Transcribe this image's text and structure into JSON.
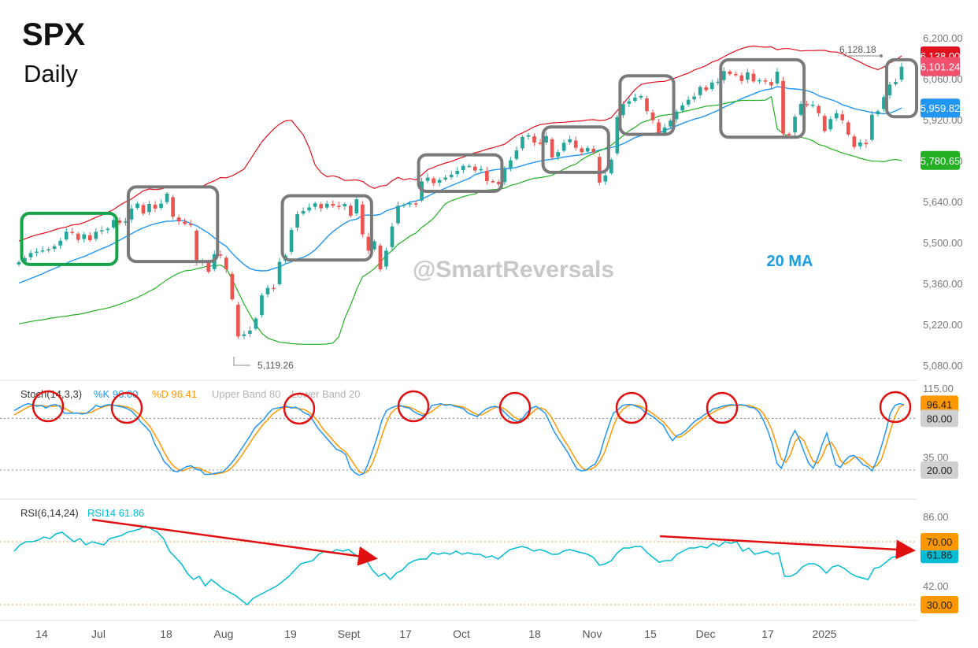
{
  "title": "SPX",
  "subtitle": "Daily",
  "watermark": "@SmartReversals",
  "ma_label": "20 MA",
  "colors": {
    "up": "#26a69a",
    "down": "#ef5350",
    "upper_band": "#e0101e",
    "middle_band": "#2196f3",
    "lower_band": "#23b023",
    "stoch_k": "#2196f3",
    "stoch_d": "#ff9800",
    "rsi": "#00bcd4",
    "highlight_green": "#17a34a",
    "highlight_gray": "#7a7a7a",
    "circle_red": "#e01010",
    "arrow_red": "#e01010"
  },
  "chart_data": [
    {
      "type": "candlestick",
      "panel": "price",
      "y_ticks": [
        "6,200.00",
        "6,060.00",
        "5,920.00",
        "5,780.00",
        "5,640.00",
        "5,500.00",
        "5,360.00",
        "5,220.00",
        "5,080.00"
      ],
      "ylim": [
        5080,
        6200
      ],
      "x_ticks": [
        "14",
        "Jul",
        "18",
        "Aug",
        "19",
        "Sept",
        "17",
        "Oct",
        "18",
        "Nov",
        "15",
        "Dec",
        "17",
        "2025"
      ],
      "annotations": {
        "high_marker": "6,128.18",
        "low_marker": "5,119.26"
      },
      "price_labels": {
        "upper_band": "6,138.00",
        "last": "6,101.24",
        "middle_band": "5,959.82",
        "lower_band": "5,780.65"
      },
      "close": [
        5433,
        5447,
        5464,
        5469,
        5473,
        5477,
        5487,
        5506,
        5537,
        5534,
        5509,
        5528,
        5508,
        5537,
        5542,
        5547,
        5577,
        5567,
        5572,
        5616,
        5633,
        5599,
        5632,
        5616,
        5633,
        5667,
        5588,
        5572,
        5564,
        5560,
        5431,
        5437,
        5400,
        5460,
        5455,
        5408,
        5306,
        5179,
        5186,
        5199,
        5240,
        5319,
        5345,
        5344,
        5434,
        5455,
        5543,
        5597,
        5608,
        5620,
        5634,
        5617,
        5633,
        5626,
        5622,
        5632,
        5591,
        5648,
        5528,
        5472,
        5504,
        5408,
        5472,
        5555,
        5626,
        5630,
        5634,
        5632,
        5709,
        5722,
        5703,
        5714,
        5722,
        5732,
        5745,
        5762,
        5762,
        5746,
        5751,
        5710,
        5709,
        5699,
        5751,
        5781,
        5815,
        5861,
        5867,
        5842,
        5838,
        5864,
        5791,
        5809,
        5841,
        5853,
        5824,
        5809,
        5823,
        5808,
        5705,
        5729,
        5783,
        5929,
        5973,
        5983,
        5995,
        6001,
        5949,
        5918,
        5870,
        5893,
        5917,
        5948,
        5969,
        5988,
        5999,
        6032,
        6021,
        6047,
        6050,
        6086,
        6076,
        6075,
        6052,
        6082,
        6051,
        6055,
        6051,
        6037,
        6084,
        5873,
        5867,
        5930,
        5974,
        5970,
        5971,
        5942,
        5881,
        5922,
        5942,
        5918,
        5869,
        5827,
        5842,
        5836,
        5937,
        5949,
        5997,
        6040,
        6049,
        6101
      ],
      "upper_band": [
        5505,
        5512,
        5520,
        5526,
        5531,
        5536,
        5543,
        5549,
        5553,
        5560,
        5562,
        5568,
        5577,
        5586,
        5594,
        5603,
        5613,
        5627,
        5639,
        5649,
        5663,
        5677,
        5683,
        5681,
        5683,
        5689,
        5690,
        5691,
        5689,
        5694,
        5693,
        5692,
        5703,
        5711,
        5722,
        5721,
        5728,
        5739,
        5751,
        5782,
        5813,
        5844,
        5867,
        5888,
        5905,
        5916,
        5918,
        5893,
        5868,
        5824,
        5765,
        5739,
        5725,
        5728,
        5723,
        5712,
        5713,
        5714,
        5709,
        5694,
        5685,
        5693,
        5695,
        5711,
        5723,
        5714,
        5719,
        5714,
        5731,
        5749,
        5757,
        5765,
        5772,
        5777,
        5785,
        5792,
        5800,
        5807,
        5812,
        5819,
        5824,
        5830,
        5836,
        5851,
        5866,
        5875,
        5885,
        5896,
        5903,
        5906,
        5909,
        5910,
        5911,
        5913,
        5915,
        5916,
        5919,
        5920,
        5917,
        5919,
        5927,
        5951,
        5975,
        5999,
        6023,
        6040,
        6045,
        6048,
        6050,
        6051,
        6057,
        6064,
        6072,
        6079,
        6090,
        6097,
        6105,
        6117,
        6124,
        6135,
        6146,
        6155,
        6163,
        6169,
        6172,
        6169,
        6168,
        6169,
        6159,
        6163,
        6163,
        6159,
        6155,
        6156,
        6156,
        6157,
        6157,
        6152,
        6151,
        6146,
        6136,
        6126,
        6117,
        6106,
        6098,
        6091,
        6100,
        6114,
        6124,
        6138
      ],
      "middle_band": [
        5361,
        5369,
        5377,
        5385,
        5393,
        5403,
        5411,
        5420,
        5429,
        5438,
        5445,
        5452,
        5461,
        5470,
        5479,
        5487,
        5497,
        5508,
        5519,
        5530,
        5541,
        5550,
        5558,
        5564,
        5569,
        5573,
        5573,
        5576,
        5574,
        5565,
        5557,
        5545,
        5532,
        5516,
        5500,
        5487,
        5463,
        5443,
        5425,
        5411,
        5405,
        5403,
        5404,
        5411,
        5417,
        5427,
        5434,
        5444,
        5449,
        5460,
        5475,
        5496,
        5518,
        5537,
        5552,
        5566,
        5576,
        5580,
        5593,
        5594,
        5593,
        5596,
        5608,
        5615,
        5622,
        5627,
        5638,
        5642,
        5648,
        5658,
        5668,
        5677,
        5686,
        5694,
        5703,
        5711,
        5719,
        5732,
        5738,
        5743,
        5748,
        5750,
        5753,
        5753,
        5757,
        5763,
        5769,
        5774,
        5779,
        5782,
        5785,
        5788,
        5792,
        5795,
        5798,
        5800,
        5805,
        5810,
        5816,
        5820,
        5825,
        5830,
        5838,
        5848,
        5859,
        5865,
        5869,
        5873,
        5875,
        5883,
        5891,
        5899,
        5907,
        5915,
        5922,
        5927,
        5934,
        5943,
        5952,
        5962,
        5972,
        5982,
        5992,
        6000,
        6008,
        6016,
        6022,
        6025,
        6033,
        6030,
        6026,
        6025,
        6023,
        6019,
        6013,
        6002,
        5995,
        5989,
        5982,
        5971,
        5965,
        5958,
        5953,
        5949,
        5944,
        5943,
        5940,
        5943,
        5950,
        5960
      ],
      "lower_band": [
        5222,
        5226,
        5230,
        5233,
        5236,
        5240,
        5243,
        5246,
        5248,
        5252,
        5254,
        5258,
        5263,
        5268,
        5272,
        5276,
        5282,
        5289,
        5296,
        5304,
        5312,
        5322,
        5333,
        5343,
        5358,
        5373,
        5385,
        5395,
        5403,
        5405,
        5410,
        5415,
        5420,
        5420,
        5423,
        5412,
        5374,
        5332,
        5290,
        5254,
        5218,
        5190,
        5173,
        5166,
        5159,
        5157,
        5154,
        5153,
        5152,
        5152,
        5152,
        5152,
        5153,
        5156,
        5178,
        5240,
        5286,
        5339,
        5383,
        5395,
        5411,
        5432,
        5456,
        5472,
        5494,
        5507,
        5522,
        5532,
        5552,
        5566,
        5583,
        5608,
        5633,
        5643,
        5650,
        5657,
        5662,
        5666,
        5676,
        5679,
        5681,
        5682,
        5686,
        5695,
        5700,
        5707,
        5714,
        5720,
        5722,
        5725,
        5730,
        5740,
        5751,
        5761,
        5768,
        5783,
        5795,
        5804,
        5813,
        5822,
        5833,
        5849,
        5865,
        5882,
        5894,
        5909,
        5916,
        5923,
        5932,
        5936,
        5938,
        5941,
        5947,
        5951,
        5956,
        5961,
        5966,
        5968,
        5970,
        5975,
        5979,
        5983,
        5986,
        5986,
        5986,
        5986,
        5987,
        5999,
        5889,
        5872,
        5862,
        5860,
        5860,
        5855,
        5848,
        5835,
        5830,
        5821,
        5814,
        5806,
        5800,
        5795,
        5788,
        5783,
        5778,
        5778,
        5776,
        5782,
        5784,
        5780
      ]
    },
    {
      "type": "line",
      "panel": "stochastic",
      "title": "Stoch(14,3,3)",
      "legend": [
        "%K 96.00",
        "%D 96.41",
        "Upper Band 80",
        "Lower Band 20"
      ],
      "y_ticks": [
        "115.00",
        "80.00",
        "35.00",
        "20.00"
      ],
      "ylim": [
        0,
        115
      ],
      "reference_lines": [
        80,
        20
      ],
      "price_labels": {
        "d": "96.41",
        "upper": "80.00",
        "lower": "20.00"
      },
      "series": [
        {
          "name": "%K",
          "values": [
            89,
            92,
            95,
            97,
            96,
            94,
            95,
            92,
            95,
            96,
            94,
            86,
            86,
            86,
            86,
            85,
            86,
            90,
            95,
            93,
            95,
            96,
            95,
            94,
            93,
            91,
            88,
            82,
            75,
            70,
            64,
            50,
            41,
            30,
            25,
            19,
            18,
            21,
            24,
            25,
            21,
            20,
            15,
            15,
            16,
            17,
            18,
            23,
            29,
            36,
            44,
            52,
            60,
            69,
            74,
            79,
            86,
            91,
            92,
            93,
            94,
            92,
            93,
            90,
            86,
            84,
            76,
            68,
            62,
            56,
            50,
            44,
            42,
            38,
            23,
            17,
            14,
            16,
            28,
            43,
            59,
            78,
            89,
            92,
            94,
            95,
            93,
            92,
            88,
            85,
            83,
            86,
            95,
            96,
            97,
            95,
            96,
            94,
            93,
            91,
            86,
            84,
            82,
            87,
            91,
            93,
            94,
            92,
            87,
            82,
            78,
            76,
            80,
            87,
            92,
            94,
            90,
            86,
            75,
            64,
            56,
            48,
            40,
            30,
            21,
            19,
            20,
            24,
            27,
            38,
            56,
            72,
            86,
            90,
            95,
            96,
            96,
            94,
            92,
            87,
            84,
            81,
            76,
            72,
            62,
            54,
            60,
            62,
            66,
            72,
            77,
            80,
            84,
            87,
            91,
            92,
            94,
            95,
            96,
            95,
            96,
            95,
            93,
            92,
            88,
            78,
            66,
            50,
            28,
            22,
            36,
            56,
            66,
            55,
            41,
            28,
            22,
            34,
            50,
            63,
            44,
            26,
            23,
            31,
            36,
            37,
            32,
            26,
            24,
            19,
            31,
            47,
            65,
            86,
            95,
            97,
            96
          ]
        },
        {
          "name": "%D",
          "values": [
            84,
            87,
            90,
            93,
            95,
            95,
            95,
            94,
            94,
            94,
            95,
            92,
            89,
            86,
            86,
            86,
            86,
            87,
            90,
            92,
            94,
            95,
            95,
            95,
            94,
            93,
            91,
            87,
            82,
            76,
            70,
            61,
            52,
            41,
            32,
            25,
            21,
            19,
            21,
            23,
            23,
            22,
            19,
            17,
            15,
            16,
            17,
            19,
            23,
            29,
            36,
            44,
            52,
            60,
            67,
            74,
            79,
            85,
            89,
            92,
            93,
            93,
            92,
            91,
            90,
            87,
            82,
            76,
            68,
            62,
            56,
            50,
            45,
            41,
            34,
            26,
            18,
            16,
            19,
            29,
            43,
            60,
            75,
            86,
            91,
            94,
            94,
            93,
            91,
            88,
            85,
            85,
            88,
            92,
            96,
            96,
            96,
            95,
            94,
            93,
            90,
            87,
            84,
            84,
            87,
            90,
            93,
            93,
            91,
            87,
            82,
            79,
            78,
            81,
            86,
            91,
            92,
            90,
            84,
            75,
            65,
            56,
            48,
            39,
            30,
            23,
            20,
            21,
            24,
            30,
            40,
            55,
            71,
            83,
            90,
            94,
            96,
            95,
            94,
            91,
            88,
            84,
            80,
            76,
            70,
            63,
            58,
            59,
            63,
            67,
            72,
            76,
            80,
            84,
            87,
            90,
            92,
            94,
            95,
            95,
            95,
            95,
            95,
            93,
            91,
            86,
            77,
            65,
            48,
            33,
            29,
            38,
            53,
            59,
            54,
            41,
            30,
            28,
            36,
            49,
            52,
            44,
            31,
            27,
            30,
            35,
            35,
            32,
            27,
            23,
            25,
            32,
            48,
            66,
            82,
            93,
            96
          ]
        }
      ]
    },
    {
      "type": "line",
      "panel": "rsi",
      "title": "RSI(6,14,24)",
      "legend": [
        "RSI14 61.86"
      ],
      "y_ticks": [
        "86.00",
        "70.00",
        "61.86",
        "42.00",
        "30.00"
      ],
      "ylim": [
        28,
        90
      ],
      "reference_lines": [
        70,
        30
      ],
      "price_labels": {
        "upper": "70.00",
        "last": "61.86",
        "lower": "30.00"
      },
      "series": [
        {
          "name": "RSI14",
          "values": [
            64,
            68,
            70,
            70,
            71,
            73,
            72,
            75,
            76,
            73,
            70,
            72,
            68,
            70,
            69,
            68,
            72,
            73,
            74,
            76,
            77,
            78,
            80,
            78,
            76,
            72,
            64,
            60,
            56,
            50,
            46,
            48,
            42,
            46,
            43,
            40,
            38,
            36,
            33,
            30,
            34,
            36,
            38,
            40,
            42,
            45,
            48,
            52,
            56,
            57,
            58,
            62,
            64,
            63,
            65,
            64,
            65,
            62,
            60,
            58,
            52,
            48,
            50,
            46,
            50,
            52,
            56,
            58,
            59,
            59,
            63,
            62,
            63,
            62,
            64,
            62,
            63,
            62,
            62,
            60,
            61,
            59,
            62,
            65,
            66,
            67,
            66,
            64,
            65,
            64,
            62,
            62,
            64,
            65,
            64,
            63,
            62,
            60,
            55,
            56,
            58,
            63,
            66,
            66,
            67,
            67,
            63,
            60,
            57,
            58,
            58,
            62,
            64,
            66,
            66,
            67,
            66,
            69,
            67,
            70,
            69,
            70,
            64,
            66,
            62,
            63,
            64,
            62,
            63,
            48,
            48,
            50,
            54,
            56,
            56,
            54,
            50,
            54,
            55,
            53,
            50,
            48,
            47,
            46,
            53,
            54,
            57,
            60,
            61,
            62
          ]
        }
      ]
    }
  ]
}
